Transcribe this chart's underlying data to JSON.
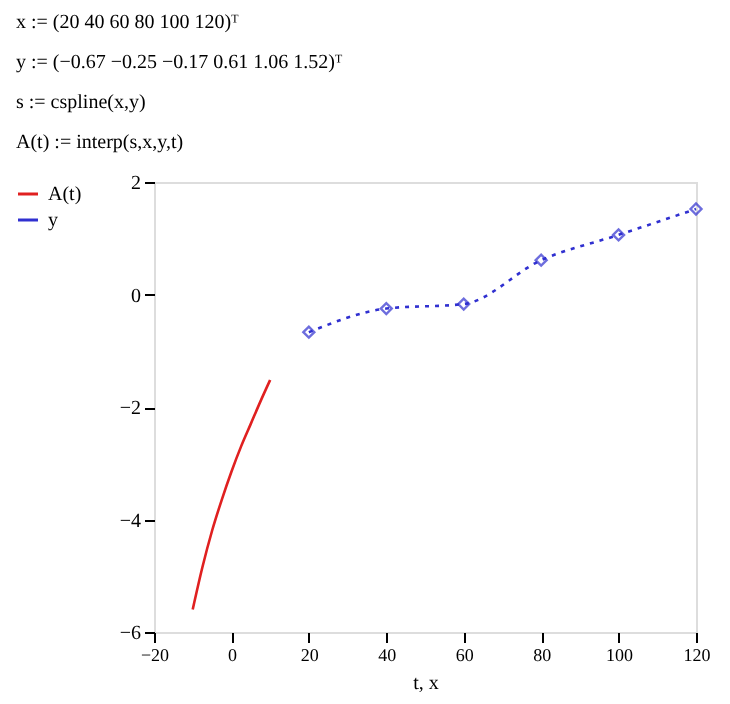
{
  "chart_data": {
    "type": "line",
    "annotations": [
      "x := (20  40  60  80  100  120)ᵀ",
      "y := (−0.67  −0.25  −0.17  0.61  1.06  1.52)ᵀ",
      "s := cspline(x,y)",
      "A(t) := interp(s,x,y,t)"
    ],
    "xlabel": "t, x",
    "series": [
      {
        "name": "A(t)",
        "color": "#e02020",
        "marker": "none",
        "line_style": "solid",
        "x": [
          -10,
          -7.5,
          -5,
          -2.5,
          0,
          2.5,
          5,
          7.5,
          10
        ],
        "values": [
          -5.6,
          -4.85,
          -4.2,
          -3.65,
          -3.15,
          -2.7,
          -2.3,
          -1.9,
          -1.52
        ]
      },
      {
        "name": "y",
        "color": "#3030d0",
        "marker": "diamond",
        "line_style": "dotted",
        "x": [
          20,
          40,
          60,
          80,
          100,
          120
        ],
        "values": [
          -0.67,
          -0.25,
          -0.17,
          0.61,
          1.06,
          1.52
        ]
      }
    ],
    "xlim": [
      -20,
      120
    ],
    "xticks": [
      -20,
      0,
      20,
      40,
      60,
      80,
      100,
      120
    ],
    "ylim": [
      -6,
      2
    ],
    "yticks": [
      -6,
      -4,
      -2,
      0,
      2
    ],
    "grid": false,
    "legend": "left"
  }
}
